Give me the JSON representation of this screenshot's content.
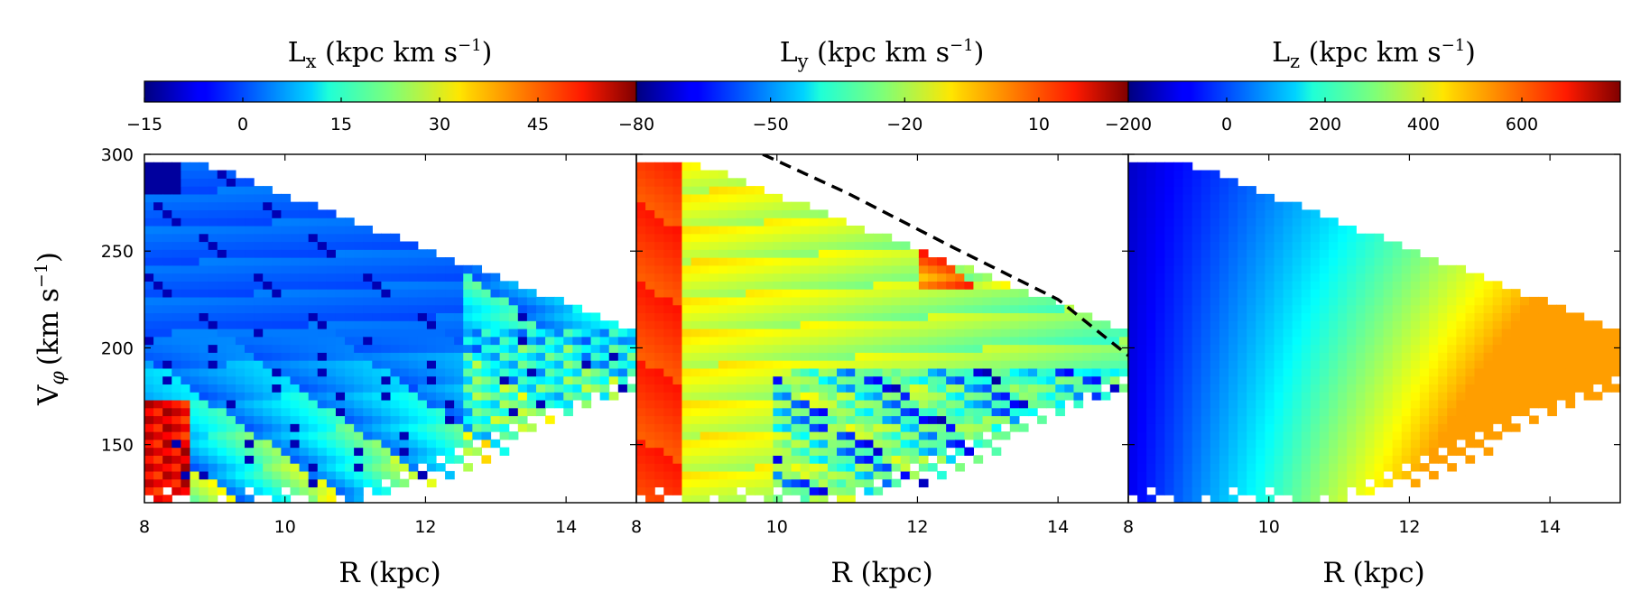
{
  "chart_data": {
    "type": "heatmap",
    "shared": {
      "xlabel": "R (kpc)",
      "ylabel": "V",
      "ylabel_sub": "φ",
      "ylabel_units": "(km s",
      "ylabel_sup": "−1",
      "ylabel_close": ")",
      "xlim": [
        8,
        15
      ],
      "ylim": [
        120,
        300
      ],
      "xticks": [
        8,
        10,
        12,
        14
      ],
      "yticks": [
        150,
        200,
        250,
        300
      ],
      "colormap": "jet"
    },
    "panels": [
      {
        "name": "Lx",
        "cbar_symbol": "L",
        "cbar_sub": "x",
        "cbar_units": " (kpc km s",
        "cbar_sup": "−1",
        "cbar_close": ")",
        "cbar_range": [
          -15,
          60
        ],
        "cbar_ticks": [
          -15,
          0,
          15,
          30,
          45
        ],
        "cbar_tick_labels": [
          "−15",
          "0",
          "15",
          "30",
          "45"
        ],
        "x_tick_labels": [
          "8",
          "10",
          "12",
          "14"
        ]
      },
      {
        "name": "Ly",
        "cbar_symbol": "L",
        "cbar_sub": "y",
        "cbar_units": " (kpc km s",
        "cbar_sup": "−1",
        "cbar_close": ")",
        "cbar_range": [
          -80,
          30
        ],
        "cbar_ticks": [
          -80,
          -50,
          -20,
          10
        ],
        "cbar_tick_labels": [
          "−80",
          "−50",
          "−20",
          "10"
        ],
        "x_tick_labels": [
          "8",
          "10",
          "12",
          "14"
        ],
        "dashed_curve": [
          [
            9.8,
            300
          ],
          [
            11.0,
            280
          ],
          [
            12.5,
            252
          ],
          [
            14.0,
            225
          ],
          [
            15.0,
            196
          ]
        ]
      },
      {
        "name": "Lz",
        "cbar_symbol": "L",
        "cbar_sub": "z",
        "cbar_units": " (kpc km s",
        "cbar_sup": "−1",
        "cbar_close": ")",
        "cbar_range": [
          -200,
          800
        ],
        "cbar_ticks": [
          -200,
          0,
          200,
          400,
          600
        ],
        "cbar_tick_labels": [
          "−200",
          "0",
          "200",
          "400",
          "600"
        ],
        "x_tick_labels": [
          "8",
          "10",
          "12",
          "14"
        ]
      }
    ],
    "y_tick_labels": [
      "150",
      "200",
      "250",
      "300"
    ]
  }
}
